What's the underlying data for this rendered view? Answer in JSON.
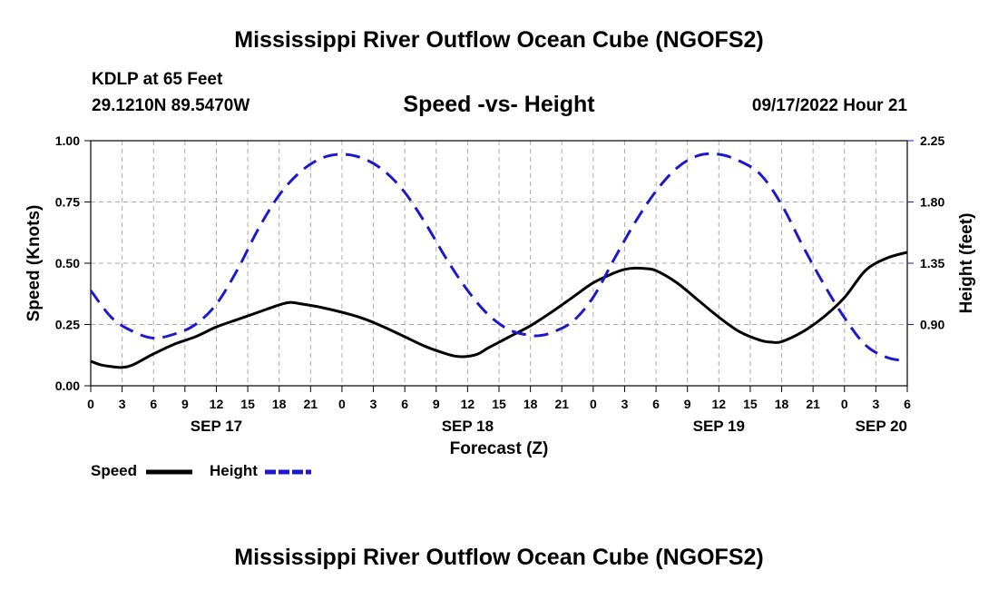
{
  "title": "Mississippi River Outflow Ocean Cube (NGOFS2)",
  "bottom_title": "Mississippi River Outflow Ocean Cube (NGOFS2)",
  "station": "KDLP at 65 Feet",
  "coords": "29.1210N  89.5470W",
  "subtitle": "Speed -vs- Height",
  "datetime": "09/17/2022 Hour 21",
  "colors": {
    "speed": "#000000",
    "height": "#1a1acc",
    "grid": "#aaaaaa"
  },
  "legend": {
    "speed": "Speed",
    "height": "Height"
  },
  "chart_data": {
    "type": "line",
    "xlabel": "Forecast (Z)",
    "ylabel_left": "Speed (Knots)",
    "ylabel_right": "Height (feet)",
    "xlim": [
      0,
      78
    ],
    "ylim_left": [
      0,
      1.0
    ],
    "ylim_right": [
      0.45,
      2.25
    ],
    "yticks_left": [
      "0.00",
      "0.25",
      "0.50",
      "0.75",
      "1.00"
    ],
    "yticks_left_values": [
      0,
      0.25,
      0.5,
      0.75,
      1.0
    ],
    "yticks_right": [
      "0.90",
      "1.35",
      "1.80",
      "2.25"
    ],
    "yticks_right_values": [
      0.9,
      1.35,
      1.8,
      2.25
    ],
    "xticks": [
      {
        "x": 0,
        "label": "0"
      },
      {
        "x": 3,
        "label": "3"
      },
      {
        "x": 6,
        "label": "6"
      },
      {
        "x": 9,
        "label": "9"
      },
      {
        "x": 12,
        "label": "12"
      },
      {
        "x": 15,
        "label": "15"
      },
      {
        "x": 18,
        "label": "18"
      },
      {
        "x": 21,
        "label": "21"
      },
      {
        "x": 24,
        "label": "0"
      },
      {
        "x": 27,
        "label": "3"
      },
      {
        "x": 30,
        "label": "6"
      },
      {
        "x": 33,
        "label": "9"
      },
      {
        "x": 36,
        "label": "12"
      },
      {
        "x": 39,
        "label": "15"
      },
      {
        "x": 42,
        "label": "18"
      },
      {
        "x": 45,
        "label": "21"
      },
      {
        "x": 48,
        "label": "0"
      },
      {
        "x": 51,
        "label": "3"
      },
      {
        "x": 54,
        "label": "6"
      },
      {
        "x": 57,
        "label": "9"
      },
      {
        "x": 60,
        "label": "12"
      },
      {
        "x": 63,
        "label": "15"
      },
      {
        "x": 66,
        "label": "18"
      },
      {
        "x": 69,
        "label": "21"
      },
      {
        "x": 72,
        "label": "0"
      },
      {
        "x": 75,
        "label": "3"
      },
      {
        "x": 78,
        "label": "6"
      }
    ],
    "day_labels": [
      {
        "x": 12,
        "label": "SEP 17"
      },
      {
        "x": 36,
        "label": "SEP 18"
      },
      {
        "x": 60,
        "label": "SEP 19"
      },
      {
        "x": 78,
        "label": "SEP 20"
      }
    ],
    "grid": true,
    "series": [
      {
        "name": "Speed",
        "axis": "left",
        "x": [
          0,
          1,
          2,
          3,
          4,
          6,
          8,
          10,
          12,
          14,
          16,
          18,
          19,
          20,
          22,
          24,
          26,
          28,
          30,
          32,
          34,
          35,
          36,
          37,
          38,
          40,
          42,
          44,
          46,
          48,
          50,
          51,
          52,
          53,
          54,
          56,
          58,
          60,
          62,
          64,
          65,
          66,
          68,
          70,
          72,
          74,
          76,
          78
        ],
        "y": [
          0.1,
          0.085,
          0.078,
          0.075,
          0.085,
          0.13,
          0.17,
          0.2,
          0.24,
          0.27,
          0.3,
          0.33,
          0.34,
          0.335,
          0.32,
          0.3,
          0.275,
          0.24,
          0.2,
          0.16,
          0.13,
          0.12,
          0.12,
          0.13,
          0.155,
          0.2,
          0.245,
          0.3,
          0.36,
          0.42,
          0.46,
          0.475,
          0.48,
          0.478,
          0.47,
          0.42,
          0.35,
          0.28,
          0.22,
          0.185,
          0.178,
          0.18,
          0.22,
          0.28,
          0.36,
          0.47,
          0.52,
          0.545
        ]
      },
      {
        "name": "Height",
        "axis": "right",
        "x": [
          0,
          2,
          4,
          6,
          8,
          10,
          12,
          14,
          16,
          18,
          20,
          22,
          24,
          26,
          28,
          30,
          32,
          34,
          36,
          38,
          40,
          42,
          43,
          44,
          46,
          48,
          50,
          52,
          54,
          56,
          58,
          60,
          62,
          64,
          66,
          68,
          70,
          72,
          74,
          76,
          78
        ],
        "y": [
          1.15,
          0.95,
          0.85,
          0.8,
          0.83,
          0.9,
          1.05,
          1.3,
          1.6,
          1.85,
          2.02,
          2.12,
          2.15,
          2.12,
          2.03,
          1.87,
          1.64,
          1.38,
          1.15,
          0.97,
          0.86,
          0.82,
          0.82,
          0.84,
          0.92,
          1.1,
          1.38,
          1.65,
          1.88,
          2.05,
          2.14,
          2.15,
          2.1,
          2.0,
          1.78,
          1.48,
          1.2,
          0.95,
          0.75,
          0.66,
          0.63
        ]
      }
    ]
  }
}
